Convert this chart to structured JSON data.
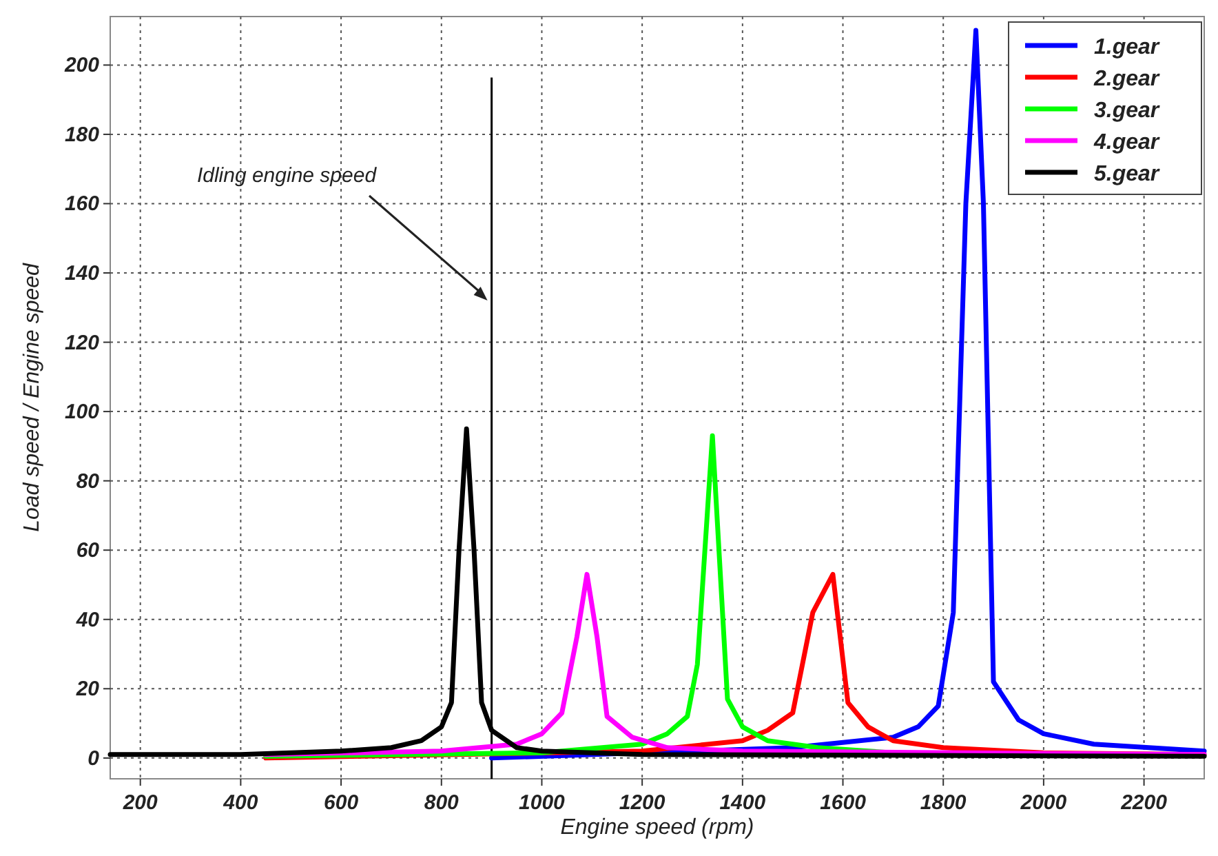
{
  "chart_data": {
    "type": "line",
    "xlabel": "Engine speed (rpm)",
    "ylabel": "Load speed / Engine speed",
    "xlim": [
      140,
      2320
    ],
    "ylim": [
      -6,
      214
    ],
    "xticks": [
      200,
      400,
      600,
      800,
      1000,
      1200,
      1400,
      1600,
      1800,
      2000,
      2200
    ],
    "yticks": [
      0,
      20,
      40,
      60,
      80,
      100,
      120,
      140,
      160,
      180,
      200
    ],
    "grid": true,
    "legend": "top right",
    "line_style": "solid",
    "annotations": [
      "Idling engine speed"
    ],
    "ref_lines": [
      {
        "axis": "x",
        "value": 900,
        "color": "#000000"
      }
    ],
    "series": [
      {
        "name": "1.gear",
        "color": "#0000ff",
        "x": [
          900,
          1500,
          1700,
          1750,
          1790,
          1820,
          1845,
          1865,
          1880,
          1900,
          1950,
          2000,
          2100,
          2320
        ],
        "values": [
          0,
          3,
          6,
          9,
          15,
          42,
          160,
          210,
          160,
          22,
          11,
          7,
          4,
          2
        ]
      },
      {
        "name": "2.gear",
        "color": "#ff0000",
        "x": [
          450,
          1200,
          1400,
          1450,
          1500,
          1540,
          1580,
          1610,
          1650,
          1700,
          1800,
          2000,
          2320
        ],
        "values": [
          0,
          2,
          5,
          8,
          13,
          42,
          53,
          16,
          9,
          5,
          3,
          1.5,
          1
        ]
      },
      {
        "name": "3.gear",
        "color": "#00ff00",
        "x": [
          450,
          1000,
          1200,
          1250,
          1290,
          1310,
          1340,
          1370,
          1400,
          1450,
          1550,
          1700,
          2320
        ],
        "values": [
          0.5,
          1.5,
          4,
          7,
          12,
          27,
          93,
          17,
          9,
          5,
          3,
          1.5,
          0.8
        ]
      },
      {
        "name": "4.gear",
        "color": "#ff00ff",
        "x": [
          450,
          800,
          950,
          1000,
          1040,
          1070,
          1090,
          1110,
          1130,
          1180,
          1250,
          1400,
          2320
        ],
        "values": [
          1,
          2,
          4,
          7,
          13,
          35,
          53,
          35,
          12,
          6,
          3,
          2,
          1
        ]
      },
      {
        "name": "5.gear",
        "color": "#000000",
        "x": [
          140,
          400,
          600,
          700,
          760,
          800,
          820,
          835,
          850,
          865,
          880,
          900,
          950,
          1000,
          1200,
          2320
        ],
        "values": [
          1,
          1,
          2,
          3,
          5,
          9,
          16,
          60,
          95,
          60,
          16,
          8,
          3,
          2,
          1,
          0.5
        ]
      }
    ]
  }
}
